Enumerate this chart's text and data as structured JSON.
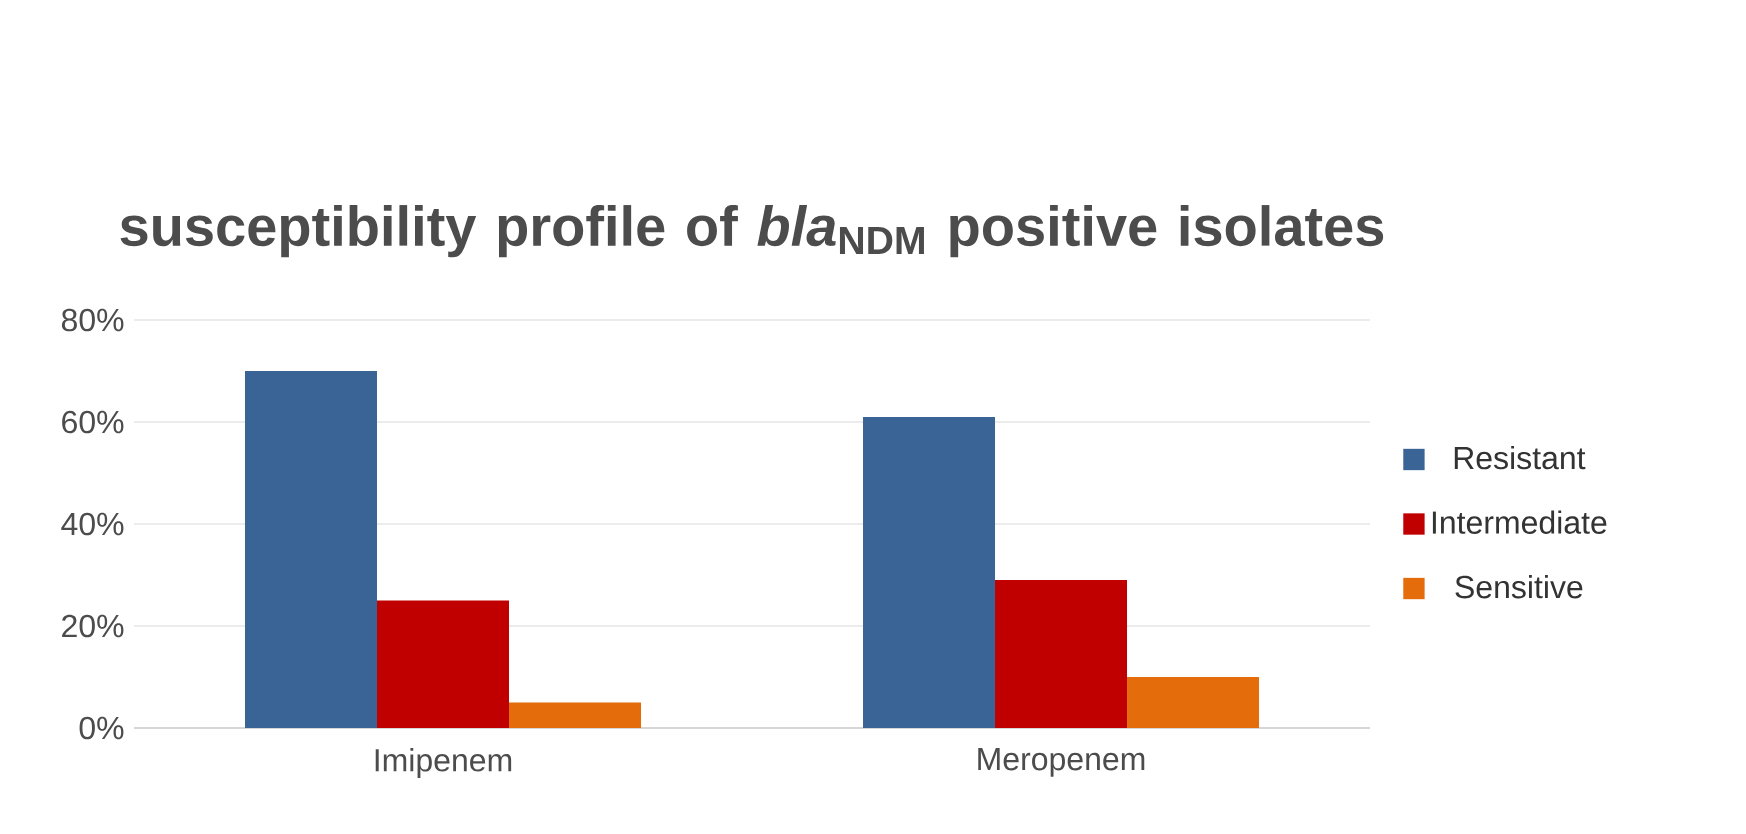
{
  "chart_data": {
    "type": "bar",
    "title": "susceptibility profile of *bla*$_{NDM}$ positive isolates",
    "categories": [
      "Imipenem",
      "Meropenem"
    ],
    "series": [
      {
        "name": "Resistant",
        "color": "#3b6496",
        "values": [
          70,
          61
        ]
      },
      {
        "name": "Intermediate",
        "color": "#c00000",
        "values": [
          25,
          29
        ]
      },
      {
        "name": "Sensitive",
        "color": "#e46c0a",
        "values": [
          5,
          10
        ]
      }
    ],
    "ylim": [
      0,
      80
    ],
    "yticks": [
      {
        "value": 0,
        "label": "0%"
      },
      {
        "value": 20,
        "label": "20%"
      },
      {
        "value": 40,
        "label": "40%"
      },
      {
        "value": 60,
        "label": "60%"
      },
      {
        "value": 80,
        "label": "80%"
      }
    ],
    "grid": "y",
    "legend": "right"
  }
}
